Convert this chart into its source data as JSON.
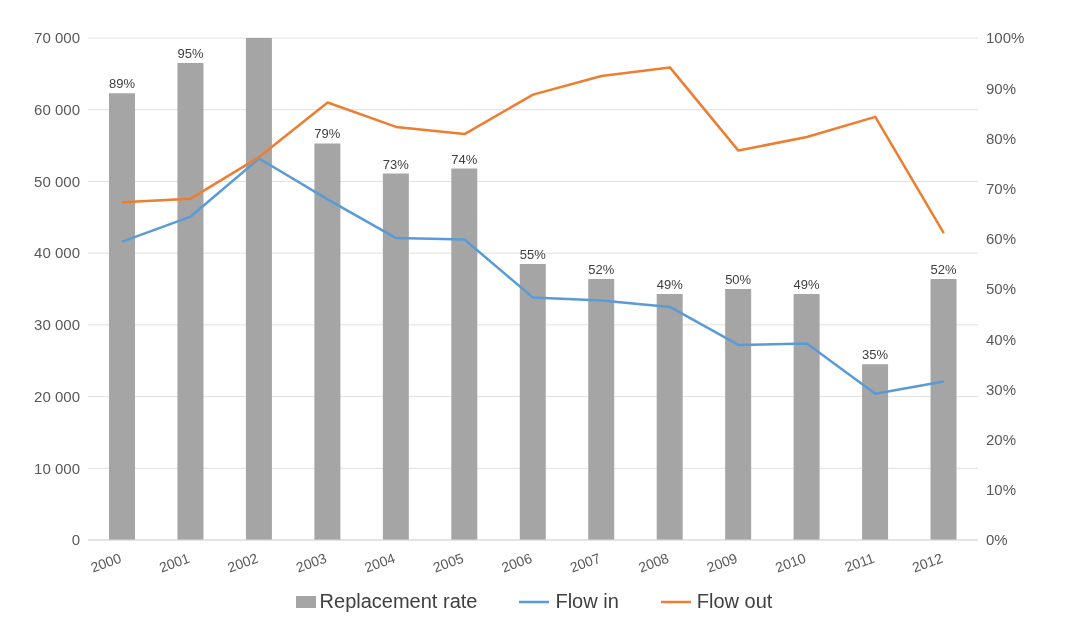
{
  "chart_data": {
    "type": "bar",
    "categories": [
      "2000",
      "2001",
      "2002",
      "2003",
      "2004",
      "2005",
      "2006",
      "2007",
      "2008",
      "2009",
      "2010",
      "2011",
      "2012"
    ],
    "series": [
      {
        "name": "Replacement rate",
        "axis": "y2",
        "color": "#a5a5a5",
        "values": [
          89,
          95,
          100,
          79,
          73,
          74,
          55,
          52,
          49,
          50,
          49,
          35,
          52
        ],
        "value_labels": [
          "89%",
          "95%",
          null,
          "79%",
          "73%",
          "74%",
          "55%",
          "52%",
          "49%",
          "50%",
          "49%",
          "35%",
          "52%"
        ]
      },
      {
        "name": "Flow in",
        "type": "line",
        "color": "#5b9bd5",
        "values": [
          41600,
          45100,
          53200,
          47500,
          42100,
          41900,
          33800,
          33400,
          32500,
          27200,
          27400,
          20400,
          22100
        ]
      },
      {
        "name": "Flow out",
        "type": "line",
        "color": "#ed7d31",
        "values": [
          47100,
          47600,
          53400,
          61000,
          57600,
          56600,
          62100,
          64700,
          65900,
          54300,
          56200,
          59000,
          42800
        ]
      }
    ],
    "ylim": [
      0,
      70000
    ],
    "yticks": [
      0,
      {
        "value": 10000,
        "label": "10 000"
      },
      {
        "value": 20000,
        "label": "20 000"
      },
      {
        "value": 30000,
        "label": "30 000"
      },
      {
        "value": 40000,
        "label": "40 000"
      },
      {
        "value": 50000,
        "label": "50 000"
      },
      {
        "value": 60000,
        "label": "60 000"
      },
      {
        "value": 70000,
        "label": "70 000"
      }
    ],
    "y2lim": [
      0,
      100
    ],
    "y2ticks": [
      {
        "value": 0,
        "label": "0%"
      },
      {
        "value": 10,
        "label": "10%"
      },
      {
        "value": 20,
        "label": "20%"
      },
      {
        "value": 30,
        "label": "30%"
      },
      {
        "value": 40,
        "label": "40%"
      },
      {
        "value": 50,
        "label": "50%"
      },
      {
        "value": 60,
        "label": "60%"
      },
      {
        "value": 70,
        "label": "70%"
      },
      {
        "value": 80,
        "label": "80%"
      },
      {
        "value": 90,
        "label": "90%"
      },
      {
        "value": 100,
        "label": "100%"
      }
    ],
    "grid": "y",
    "legend": "bottom"
  }
}
